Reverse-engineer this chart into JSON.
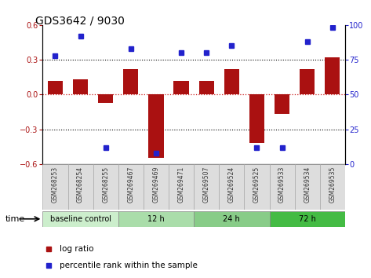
{
  "title": "GDS3642 / 9030",
  "samples": [
    "GSM268253",
    "GSM268254",
    "GSM268255",
    "GSM269467",
    "GSM269469",
    "GSM269471",
    "GSM269507",
    "GSM269524",
    "GSM269525",
    "GSM269533",
    "GSM269534",
    "GSM269535"
  ],
  "log_ratio": [
    0.12,
    0.13,
    -0.07,
    0.22,
    -0.55,
    0.12,
    0.12,
    0.22,
    -0.42,
    -0.17,
    0.22,
    0.32
  ],
  "percentile_rank": [
    78,
    92,
    12,
    83,
    8,
    80,
    80,
    85,
    12,
    12,
    88,
    98
  ],
  "bar_color": "#aa1111",
  "dot_color": "#2222cc",
  "ylim_left": [
    -0.6,
    0.6
  ],
  "ylim_right": [
    0,
    100
  ],
  "yticks_left": [
    -0.6,
    -0.3,
    0.0,
    0.3,
    0.6
  ],
  "yticks_right": [
    0,
    25,
    50,
    75,
    100
  ],
  "groups": [
    {
      "label": "baseline control",
      "start": 0,
      "end": 3,
      "color": "#cceecc"
    },
    {
      "label": "12 h",
      "start": 3,
      "end": 6,
      "color": "#aaddaa"
    },
    {
      "label": "24 h",
      "start": 6,
      "end": 9,
      "color": "#88cc88"
    },
    {
      "label": "72 h",
      "start": 9,
      "end": 12,
      "color": "#44bb44"
    }
  ],
  "hline_color": "#cc2222",
  "dotline_color": "black",
  "bg_color": "white",
  "plot_bg": "white",
  "legend_log_ratio": "log ratio",
  "legend_percentile": "percentile rank within the sample",
  "time_label": "time",
  "sample_bg": "#dddddd",
  "sample_border": "#aaaaaa"
}
